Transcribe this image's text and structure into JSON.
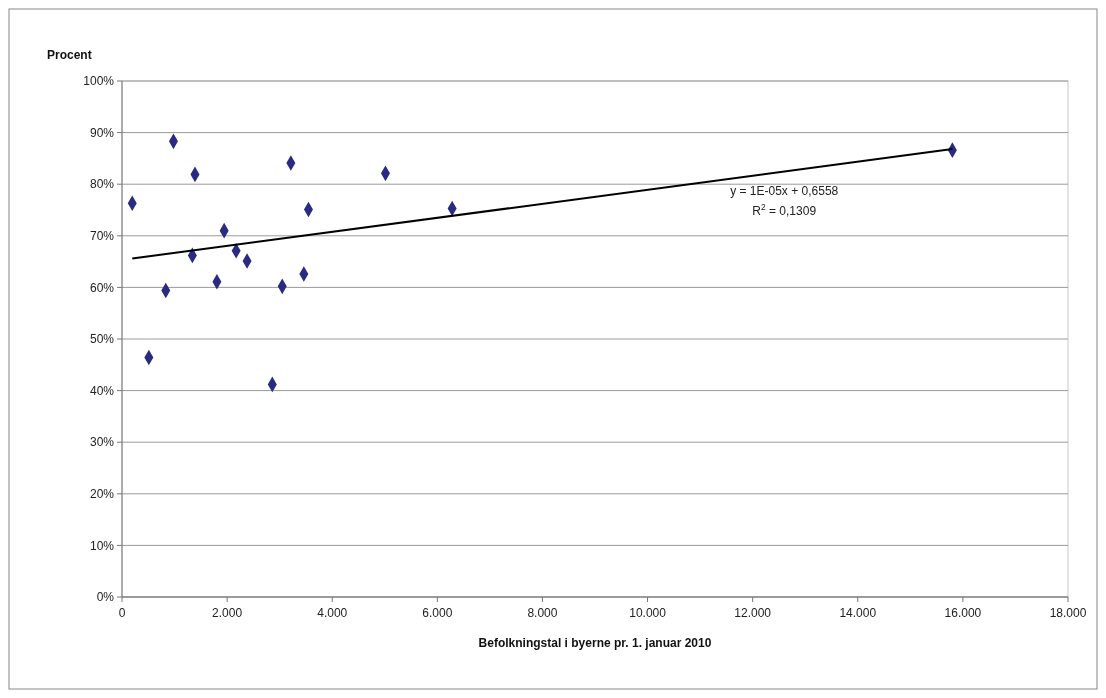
{
  "chart_data": {
    "type": "scatter",
    "ylabel": "Procent",
    "xlabel": "Befolkningstal i byerne pr. 1. januar 2010",
    "series": [
      {
        "color": "#2a2a80",
        "marker": "diamond",
        "x": [
          195,
          511,
          833,
          979,
          1339,
          1389,
          1806,
          1944,
          2172,
          2380,
          2860,
          3049,
          3213,
          3460,
          3548,
          5013,
          6282,
          15800
        ],
        "values": [
          76.3,
          46.4,
          59.4,
          88.3,
          66.2,
          81.9,
          61.1,
          71.0,
          67.1,
          65.1,
          41.2,
          60.2,
          84.1,
          62.6,
          75.1,
          82.1,
          75.3,
          86.6
        ]
      },
      {
        "type": "line",
        "color": "#000000",
        "x": [
          195,
          15800
        ],
        "values": [
          65.6,
          86.8
        ]
      }
    ],
    "annotations": [
      "y = 1E-05x + 0,6558",
      "R$^{2}$ = 0,1309"
    ],
    "xlim": [
      0,
      18000
    ],
    "xticks": [
      {
        "value": 0,
        "label": "0"
      },
      {
        "value": 2000,
        "label": "2.000"
      },
      {
        "value": 4000,
        "label": "4.000"
      },
      {
        "value": 6000,
        "label": "6.000"
      },
      {
        "value": 8000,
        "label": "8.000"
      },
      {
        "value": 10000,
        "label": "10.000"
      },
      {
        "value": 12000,
        "label": "12.000"
      },
      {
        "value": 14000,
        "label": "14.000"
      },
      {
        "value": 16000,
        "label": "16.000"
      },
      {
        "value": 18000,
        "label": "18.000"
      }
    ],
    "ylim": [
      0,
      100
    ],
    "yticks": [
      {
        "value": 0,
        "label": "0%"
      },
      {
        "value": 10,
        "label": "10%"
      },
      {
        "value": 20,
        "label": "20%"
      },
      {
        "value": 30,
        "label": "30%"
      },
      {
        "value": 40,
        "label": "40%"
      },
      {
        "value": 50,
        "label": "50%"
      },
      {
        "value": 60,
        "label": "60%"
      },
      {
        "value": 70,
        "label": "70%"
      },
      {
        "value": 80,
        "label": "80%"
      },
      {
        "value": 90,
        "label": "90%"
      },
      {
        "value": 100,
        "label": "100%"
      }
    ],
    "grid": "y"
  }
}
